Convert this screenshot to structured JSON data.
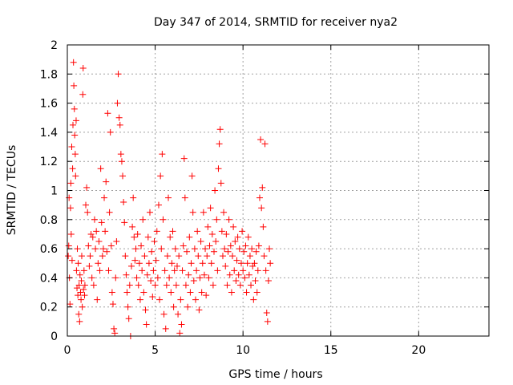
{
  "chart_data": {
    "type": "scatter",
    "title": "Day 347 of 2014, SRMTID for receiver nya2",
    "xlabel": "GPS time / hours",
    "ylabel": "SRMTID / TECUs",
    "xlim": [
      0,
      24
    ],
    "ylim": [
      0,
      2
    ],
    "xticks": [
      0,
      5,
      10,
      15,
      20
    ],
    "xtick_labels": [
      "0",
      "5",
      "10",
      "15",
      "20"
    ],
    "yticks": [
      0,
      0.2,
      0.4,
      0.6,
      0.8,
      1,
      1.2,
      1.4,
      1.6,
      1.8,
      2
    ],
    "ytick_labels": [
      "0",
      "0.2",
      "0.4",
      "0.6",
      "0.8",
      "1",
      "1.2",
      "1.4",
      "1.6",
      "1.8",
      "2"
    ],
    "grid": true,
    "marker": "+",
    "color": "#ff0000",
    "series": [
      {
        "name": "SRMTID",
        "points": [
          [
            0.05,
            0.55
          ],
          [
            0.08,
            0.62
          ],
          [
            0.1,
            0.95
          ],
          [
            0.12,
            0.4
          ],
          [
            0.15,
            0.22
          ],
          [
            0.18,
            0.88
          ],
          [
            0.2,
            1.05
          ],
          [
            0.22,
            0.7
          ],
          [
            0.25,
            1.3
          ],
          [
            0.27,
            0.52
          ],
          [
            0.3,
            1.15
          ],
          [
            0.32,
            1.45
          ],
          [
            0.35,
            1.88
          ],
          [
            0.37,
            1.72
          ],
          [
            0.4,
            1.56
          ],
          [
            0.42,
            1.38
          ],
          [
            0.45,
            1.25
          ],
          [
            0.47,
            1.1
          ],
          [
            0.5,
            1.48
          ],
          [
            0.52,
            0.45
          ],
          [
            0.55,
            0.33
          ],
          [
            0.57,
            0.6
          ],
          [
            0.6,
            0.28
          ],
          [
            0.62,
            0.5
          ],
          [
            0.65,
            0.15
          ],
          [
            0.67,
            0.35
          ],
          [
            0.7,
            0.1
          ],
          [
            0.72,
            0.42
          ],
          [
            0.75,
            0.3
          ],
          [
            0.78,
            0.25
          ],
          [
            0.8,
            0.38
          ],
          [
            0.82,
            0.55
          ],
          [
            0.85,
            0.2
          ],
          [
            0.88,
            1.66
          ],
          [
            0.9,
            1.84
          ],
          [
            0.92,
            0.32
          ],
          [
            0.95,
            0.45
          ],
          [
            0.98,
            0.28
          ],
          [
            1.0,
            0.35
          ],
          [
            1.05,
            0.9
          ],
          [
            1.1,
            1.02
          ],
          [
            1.15,
            0.85
          ],
          [
            1.2,
            0.62
          ],
          [
            1.25,
            0.48
          ],
          [
            1.3,
            0.55
          ],
          [
            1.35,
            0.7
          ],
          [
            1.4,
            0.4
          ],
          [
            1.45,
            0.68
          ],
          [
            1.5,
            0.35
          ],
          [
            1.55,
            0.8
          ],
          [
            1.6,
            0.6
          ],
          [
            1.65,
            0.72
          ],
          [
            1.7,
            0.25
          ],
          [
            1.75,
            0.5
          ],
          [
            1.8,
            0.65
          ],
          [
            1.85,
            0.45
          ],
          [
            1.9,
            1.15
          ],
          [
            1.95,
            0.78
          ],
          [
            2.0,
            0.55
          ],
          [
            2.05,
            0.6
          ],
          [
            2.1,
            0.95
          ],
          [
            2.15,
            0.72
          ],
          [
            2.2,
            1.06
          ],
          [
            2.25,
            0.58
          ],
          [
            2.3,
            1.53
          ],
          [
            2.35,
            0.45
          ],
          [
            2.4,
            0.85
          ],
          [
            2.45,
            1.4
          ],
          [
            2.5,
            0.62
          ],
          [
            2.55,
            0.3
          ],
          [
            2.6,
            0.22
          ],
          [
            2.65,
            0.05
          ],
          [
            2.7,
            0.02
          ],
          [
            2.75,
            0.4
          ],
          [
            2.8,
            0.65
          ],
          [
            2.85,
            1.6
          ],
          [
            2.9,
            1.8
          ],
          [
            2.95,
            1.5
          ],
          [
            3.0,
            1.45
          ],
          [
            3.05,
            1.25
          ],
          [
            3.1,
            1.2
          ],
          [
            3.15,
            1.1
          ],
          [
            3.2,
            0.92
          ],
          [
            3.25,
            0.78
          ],
          [
            3.3,
            0.55
          ],
          [
            3.35,
            0.42
          ],
          [
            3.4,
            0.3
          ],
          [
            3.45,
            0.2
          ],
          [
            3.5,
            0.12
          ],
          [
            3.55,
            0.35
          ],
          [
            3.6,
            0.0
          ],
          [
            3.65,
            0.48
          ],
          [
            3.7,
            0.75
          ],
          [
            3.75,
            0.95
          ],
          [
            3.8,
            0.68
          ],
          [
            3.85,
            0.52
          ],
          [
            3.9,
            0.6
          ],
          [
            3.95,
            0.4
          ],
          [
            4.0,
            0.7
          ],
          [
            4.05,
            0.35
          ],
          [
            4.1,
            0.5
          ],
          [
            4.15,
            0.25
          ],
          [
            4.2,
            0.62
          ],
          [
            4.25,
            0.45
          ],
          [
            4.3,
            0.8
          ],
          [
            4.35,
            0.3
          ],
          [
            4.4,
            0.55
          ],
          [
            4.45,
            0.18
          ],
          [
            4.5,
            0.08
          ],
          [
            4.55,
            0.42
          ],
          [
            4.6,
            0.68
          ],
          [
            4.65,
            0.5
          ],
          [
            4.7,
            0.85
          ],
          [
            4.75,
            0.38
          ],
          [
            4.8,
            0.58
          ],
          [
            4.85,
            0.27
          ],
          [
            4.9,
            0.45
          ],
          [
            4.95,
            0.65
          ],
          [
            5.0,
            0.35
          ],
          [
            5.05,
            0.52
          ],
          [
            5.1,
            0.72
          ],
          [
            5.15,
            0.4
          ],
          [
            5.2,
            0.9
          ],
          [
            5.25,
            0.25
          ],
          [
            5.3,
            1.1
          ],
          [
            5.35,
            0.6
          ],
          [
            5.4,
            1.25
          ],
          [
            5.45,
            0.8
          ],
          [
            5.5,
            0.15
          ],
          [
            5.55,
            0.45
          ],
          [
            5.6,
            0.05
          ],
          [
            5.65,
            0.35
          ],
          [
            5.7,
            0.55
          ],
          [
            5.75,
            0.95
          ],
          [
            5.8,
            0.4
          ],
          [
            5.85,
            0.68
          ],
          [
            5.9,
            0.3
          ],
          [
            5.95,
            0.5
          ],
          [
            6.0,
            0.72
          ],
          [
            6.05,
            0.2
          ],
          [
            6.1,
            0.45
          ],
          [
            6.15,
            0.6
          ],
          [
            6.2,
            0.35
          ],
          [
            6.25,
            0.48
          ],
          [
            6.3,
            0.15
          ],
          [
            6.35,
            0.55
          ],
          [
            6.4,
            0.02
          ],
          [
            6.45,
            0.25
          ],
          [
            6.5,
            0.08
          ],
          [
            6.55,
            0.45
          ],
          [
            6.6,
            0.62
          ],
          [
            6.65,
            1.22
          ],
          [
            6.7,
            0.95
          ],
          [
            6.75,
            0.35
          ],
          [
            6.8,
            0.58
          ],
          [
            6.85,
            0.2
          ],
          [
            6.9,
            0.42
          ],
          [
            6.95,
            0.68
          ],
          [
            7.0,
            0.3
          ],
          [
            7.05,
            0.5
          ],
          [
            7.1,
            1.1
          ],
          [
            7.15,
            0.85
          ],
          [
            7.2,
            0.38
          ],
          [
            7.25,
            0.6
          ],
          [
            7.3,
            0.25
          ],
          [
            7.35,
            0.45
          ],
          [
            7.4,
            0.72
          ],
          [
            7.45,
            0.55
          ],
          [
            7.5,
            0.18
          ],
          [
            7.55,
            0.4
          ],
          [
            7.6,
            0.65
          ],
          [
            7.65,
            0.3
          ],
          [
            7.7,
            0.5
          ],
          [
            7.75,
            0.85
          ],
          [
            7.8,
            0.42
          ],
          [
            7.85,
            0.6
          ],
          [
            7.9,
            0.28
          ],
          [
            7.95,
            0.55
          ],
          [
            8.0,
            0.75
          ],
          [
            8.05,
            0.4
          ],
          [
            8.1,
            0.62
          ],
          [
            8.15,
            0.88
          ],
          [
            8.2,
            0.5
          ],
          [
            8.25,
            0.7
          ],
          [
            8.3,
            0.35
          ],
          [
            8.35,
            0.58
          ],
          [
            8.4,
            1.0
          ],
          [
            8.45,
            0.65
          ],
          [
            8.5,
            0.8
          ],
          [
            8.55,
            0.45
          ],
          [
            8.6,
            1.15
          ],
          [
            8.65,
            1.32
          ],
          [
            8.7,
            1.42
          ],
          [
            8.75,
            1.05
          ],
          [
            8.8,
            0.72
          ],
          [
            8.85,
            0.55
          ],
          [
            8.9,
            0.85
          ],
          [
            8.95,
            0.6
          ],
          [
            9.0,
            0.48
          ],
          [
            9.05,
            0.7
          ],
          [
            9.1,
            0.35
          ],
          [
            9.15,
            0.58
          ],
          [
            9.2,
            0.8
          ],
          [
            9.25,
            0.42
          ],
          [
            9.3,
            0.62
          ],
          [
            9.35,
            0.3
          ],
          [
            9.4,
            0.55
          ],
          [
            9.45,
            0.75
          ],
          [
            9.5,
            0.45
          ],
          [
            9.55,
            0.65
          ],
          [
            9.6,
            0.38
          ],
          [
            9.65,
            0.52
          ],
          [
            9.7,
            0.68
          ],
          [
            9.75,
            0.42
          ],
          [
            9.8,
            0.6
          ],
          [
            9.85,
            0.35
          ],
          [
            9.9,
            0.5
          ],
          [
            9.95,
            0.72
          ],
          [
            10.0,
            0.45
          ],
          [
            10.05,
            0.58
          ],
          [
            10.1,
            0.4
          ],
          [
            10.15,
            0.62
          ],
          [
            10.2,
            0.3
          ],
          [
            10.25,
            0.5
          ],
          [
            10.3,
            0.68
          ],
          [
            10.35,
            0.42
          ],
          [
            10.4,
            0.55
          ],
          [
            10.45,
            0.35
          ],
          [
            10.5,
            0.6
          ],
          [
            10.55,
            0.48
          ],
          [
            10.6,
            0.25
          ],
          [
            10.65,
            0.5
          ],
          [
            10.7,
            0.38
          ],
          [
            10.75,
            0.58
          ],
          [
            10.8,
            0.3
          ],
          [
            10.85,
            0.45
          ],
          [
            10.9,
            0.62
          ],
          [
            10.95,
            0.95
          ],
          [
            11.0,
            1.35
          ],
          [
            11.05,
            0.88
          ],
          [
            11.1,
            1.02
          ],
          [
            11.15,
            0.75
          ],
          [
            11.2,
            0.55
          ],
          [
            11.25,
            1.32
          ],
          [
            11.3,
            0.45
          ],
          [
            11.35,
            0.16
          ],
          [
            11.4,
            0.1
          ],
          [
            11.45,
            0.38
          ],
          [
            11.5,
            0.6
          ],
          [
            11.55,
            0.5
          ]
        ]
      }
    ]
  }
}
